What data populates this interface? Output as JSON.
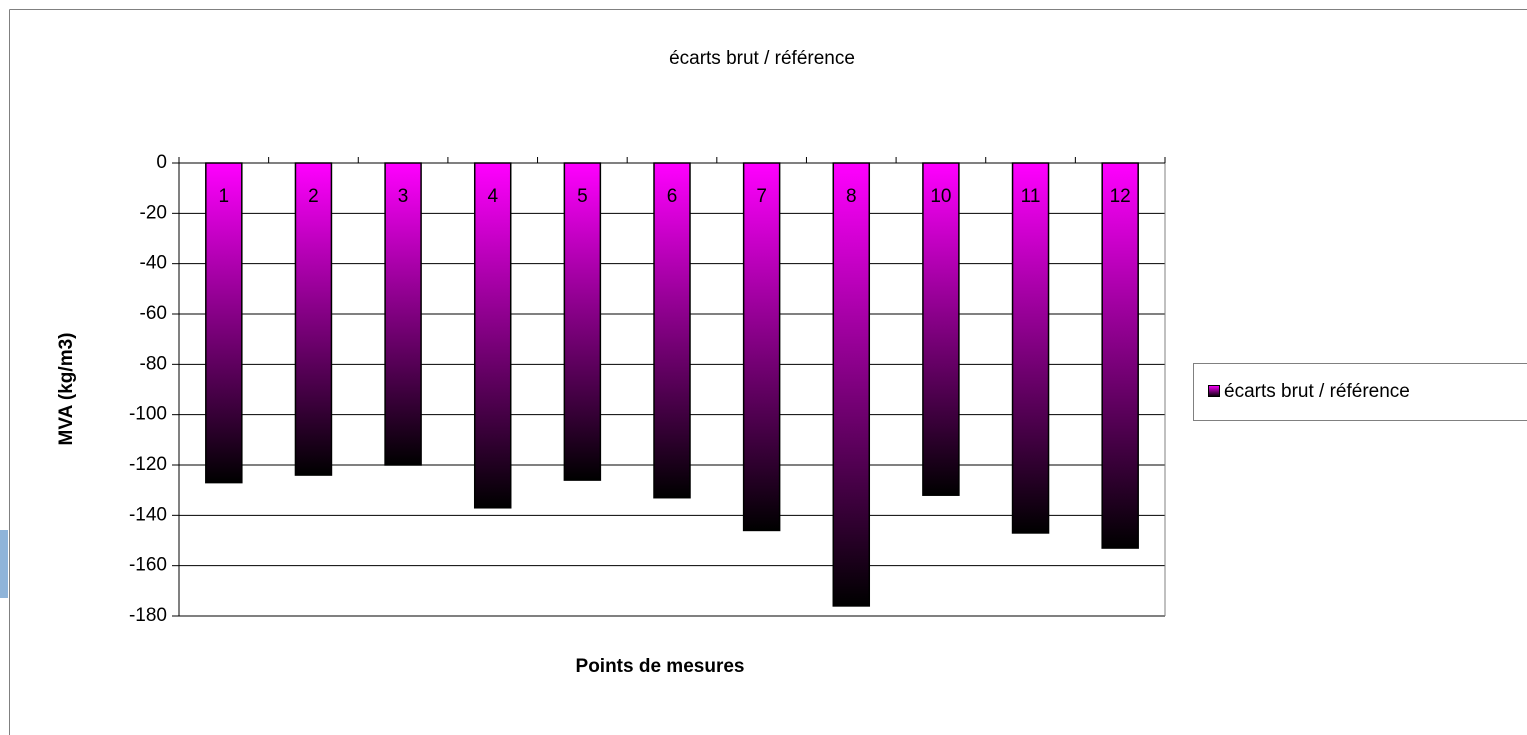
{
  "chart_data": {
    "type": "bar",
    "title": "écarts brut / référence",
    "x_label": "Points de mesures",
    "y_label": "MVA (kg/m3)",
    "categories": [
      "1",
      "2",
      "3",
      "4",
      "5",
      "6",
      "7",
      "8",
      "10",
      "11",
      "12"
    ],
    "series": [
      {
        "name": "écarts brut / référence",
        "color": "#ff00ff",
        "values": [
          -127,
          -124,
          -120,
          -137,
          -126,
          -133,
          -146,
          -176,
          -132,
          -147,
          -153
        ]
      }
    ],
    "ylim": [
      -180,
      0
    ],
    "yticks": [
      0,
      -20,
      -40,
      -60,
      -80,
      -100,
      -120,
      -140,
      -160,
      -180
    ],
    "grid": true,
    "legend": "right"
  }
}
